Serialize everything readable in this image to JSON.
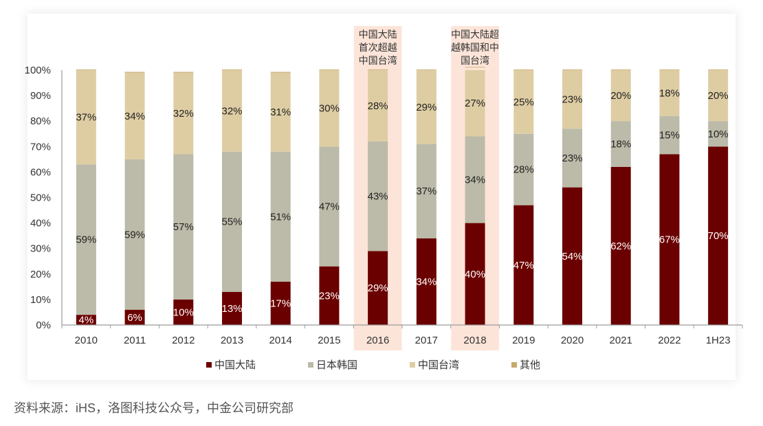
{
  "chart_data": {
    "type": "bar",
    "stacked": true,
    "title": "",
    "xlabel": "",
    "ylabel": "",
    "ylim": [
      0,
      100
    ],
    "yticks": [
      "0%",
      "10%",
      "20%",
      "30%",
      "40%",
      "50%",
      "60%",
      "70%",
      "80%",
      "90%",
      "100%"
    ],
    "grid": false,
    "categories": [
      "2010",
      "2011",
      "2012",
      "2013",
      "2014",
      "2015",
      "2016",
      "2017",
      "2018",
      "2019",
      "2020",
      "2021",
      "2022",
      "1H23"
    ],
    "series": [
      {
        "name": "中国大陆",
        "color": "#6b0000",
        "label_color": "#ffffff",
        "values": [
          4,
          6,
          10,
          13,
          17,
          23,
          29,
          34,
          40,
          47,
          54,
          62,
          67,
          70
        ],
        "labels": [
          "4%",
          "6%",
          "10%",
          "13%",
          "17%",
          "23%",
          "29%",
          "34%",
          "40%",
          "47%",
          "54%",
          "62%",
          "67%",
          "70%"
        ]
      },
      {
        "name": "日本韩国",
        "color": "#bcbaa8",
        "label_color": "#222222",
        "values": [
          59,
          59,
          57,
          55,
          51,
          47,
          43,
          37,
          34,
          28,
          23,
          18,
          15,
          10
        ],
        "labels": [
          "59%",
          "59%",
          "57%",
          "55%",
          "51%",
          "47%",
          "43%",
          "37%",
          "34%",
          "28%",
          "23%",
          "18%",
          "15%",
          "10%"
        ]
      },
      {
        "name": "中国台湾",
        "color": "#decda3",
        "label_color": "#222222",
        "values": [
          37,
          34,
          32,
          32,
          31,
          30,
          28,
          29,
          27,
          25,
          23,
          20,
          18,
          20
        ],
        "labels": [
          "37%",
          "34%",
          "32%",
          "32%",
          "31%",
          "30%",
          "28%",
          "29%",
          "27%",
          "25%",
          "23%",
          "20%",
          "18%",
          "20%"
        ]
      },
      {
        "name": "其他",
        "color": "#c9a96b",
        "label_color": "#222222",
        "values": [
          0.4,
          0.3,
          0.3,
          0.3,
          0.3,
          0.3,
          0.3,
          0.3,
          0.3,
          0.2,
          0.2,
          0.4,
          0.2,
          0.2
        ],
        "labels": []
      }
    ],
    "highlights": [
      {
        "category": "2016",
        "text_lines": [
          "中国大陆",
          "首次超越",
          "中国台湾"
        ],
        "color": "#fce4d8"
      },
      {
        "category": "2018",
        "text_lines": [
          "中国大陆超",
          "越韩国和中",
          "国台湾"
        ],
        "color": "#fce4d8"
      }
    ],
    "legend": {
      "position": "bottom",
      "items": [
        "中国大陆",
        "日本韩国",
        "中国台湾",
        "其他"
      ]
    }
  },
  "source_note": "资料来源：iHS，洛图科技公众号，中金公司研究部"
}
